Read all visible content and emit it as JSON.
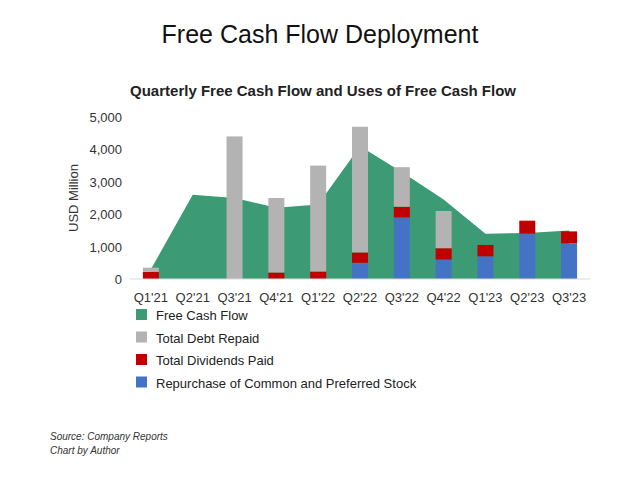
{
  "chart_data": {
    "type": "bar",
    "title": "Free Cash Flow Deployment",
    "subtitle": "Quarterly Free Cash Flow and Uses of Free Cash Flow",
    "y_label": "USD Million",
    "annotations": [
      "Source: Company Reports",
      "Chart by Author"
    ],
    "categories": [
      "Q1'21",
      "Q2'21",
      "Q3'21",
      "Q4'21",
      "Q1'22",
      "Q2'22",
      "Q3'22",
      "Q4'22",
      "Q1'23",
      "Q2'23",
      "Q3'23"
    ],
    "series": [
      {
        "name": "Free Cash Flow",
        "type": "area",
        "color": "#3c9b74",
        "values": [
          300,
          2600,
          2500,
          2200,
          2300,
          4100,
          3300,
          2450,
          1400,
          1420,
          1500
        ]
      },
      {
        "name": "Total Debt Repaid",
        "type": "bar",
        "color": "#b3b3b3",
        "values": [
          130,
          0,
          4400,
          2300,
          3270,
          3880,
          1220,
          1150,
          0,
          0,
          0
        ]
      },
      {
        "name": "Total Dividends Paid",
        "type": "bar",
        "color": "#c00000",
        "values": [
          220,
          0,
          0,
          200,
          230,
          320,
          330,
          350,
          350,
          400,
          370
        ]
      },
      {
        "name": "Repurchase of Common and Preferred Stock",
        "type": "bar",
        "color": "#4472c4",
        "values": [
          0,
          0,
          0,
          0,
          0,
          500,
          1900,
          600,
          700,
          1400,
          1100
        ]
      }
    ],
    "stacked": true,
    "grid": false,
    "legend": "bottom-left",
    "ylim": [
      0,
      5000
    ],
    "yticks": [
      0,
      {
        "value": 1000,
        "label": "1,000"
      },
      {
        "value": 2000,
        "label": "2,000"
      },
      {
        "value": 3000,
        "label": "3,000"
      },
      {
        "value": 4000,
        "label": "4,000"
      },
      {
        "value": 5000,
        "label": "5,000"
      }
    ]
  }
}
